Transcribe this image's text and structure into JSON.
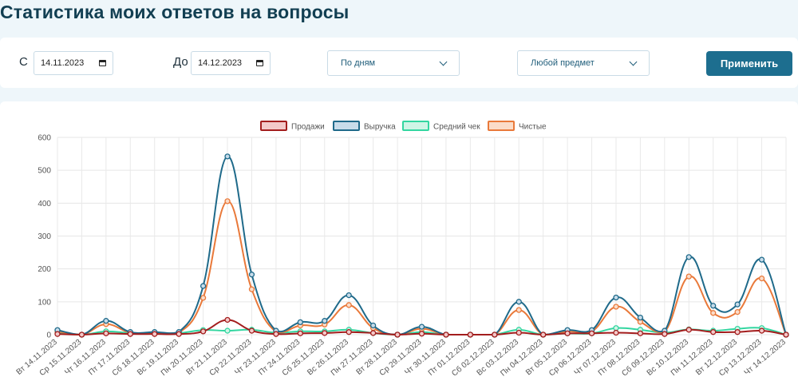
{
  "page": {
    "title": "Статистика моих ответов на вопросы"
  },
  "filters": {
    "from_label": "С",
    "from_value": "14.11.2023",
    "to_label": "До",
    "to_value": "14.12.2023",
    "grouping": "По дням",
    "subject": "Любой предмет",
    "apply_label": "Применить"
  },
  "colors": {
    "accent": "#1d6e8f",
    "sales": "#a31d1d",
    "revenue": "#1f6a8a",
    "avg_check": "#33d6a0",
    "net": "#e9793a"
  },
  "chart_data": {
    "type": "line",
    "title": "",
    "xlabel": "",
    "ylabel": "",
    "ylim": [
      0,
      600
    ],
    "yticks": [
      0,
      100,
      200,
      300,
      400,
      500,
      600
    ],
    "grid": true,
    "legend_position": "top-center",
    "categories": [
      "Вт 14.11.2023",
      "Ср 15.11.2023",
      "Чт 16.11.2023",
      "Пт 17.11.2023",
      "Сб 18.11.2023",
      "Вс 19.11.2023",
      "Пн 20.11.2023",
      "Вт 21.11.2023",
      "Ср 22.11.2023",
      "Чт 23.11.2023",
      "Пт 24.11.2023",
      "Сб 25.11.2023",
      "Вс 26.11.2023",
      "Пн 27.11.2023",
      "Вт 28.11.2023",
      "Ср 29.11.2023",
      "Чт 30.11.2023",
      "Пт 01.12.2023",
      "Сб 02.12.2023",
      "Вс 03.12.2023",
      "Пн 04.12.2023",
      "Вт 05.12.2023",
      "Ср 06.12.2023",
      "Чт 07.12.2023",
      "Пт 08.12.2023",
      "Сб 09.12.2023",
      "Вс 10.12.2023",
      "Пн 11.12.2023",
      "Вт 12.12.2023",
      "Ср 13.12.2023",
      "Чт 14.12.2023"
    ],
    "series": [
      {
        "name": "Продажи",
        "color": "#a31d1d",
        "fill": "#f3c9c9",
        "values": [
          2,
          0,
          4,
          2,
          2,
          2,
          10,
          45,
          12,
          2,
          4,
          5,
          8,
          5,
          0,
          3,
          0,
          0,
          0,
          6,
          0,
          4,
          4,
          6,
          4,
          2,
          15,
          8,
          8,
          12,
          0
        ]
      },
      {
        "name": "Выручка",
        "color": "#1f6a8a",
        "fill": "#c8dcea",
        "values": [
          14,
          0,
          42,
          8,
          8,
          8,
          148,
          542,
          183,
          12,
          38,
          42,
          120,
          28,
          0,
          24,
          0,
          0,
          0,
          100,
          0,
          14,
          14,
          113,
          52,
          12,
          236,
          88,
          92,
          228,
          0
        ]
      },
      {
        "name": "Средний чек",
        "color": "#33d6a0",
        "fill": "#cff5e6",
        "values": [
          7,
          0,
          10,
          5,
          5,
          5,
          14,
          12,
          15,
          6,
          10,
          10,
          15,
          5,
          0,
          8,
          0,
          0,
          0,
          15,
          0,
          4,
          4,
          20,
          15,
          6,
          16,
          12,
          18,
          20,
          0
        ]
      },
      {
        "name": "Чистые",
        "color": "#e9793a",
        "fill": "#fbdcc8",
        "values": [
          10,
          0,
          32,
          6,
          6,
          6,
          112,
          406,
          138,
          9,
          28,
          31,
          90,
          20,
          0,
          18,
          0,
          0,
          0,
          75,
          0,
          10,
          10,
          85,
          39,
          9,
          177,
          66,
          69,
          171,
          0
        ]
      }
    ]
  }
}
